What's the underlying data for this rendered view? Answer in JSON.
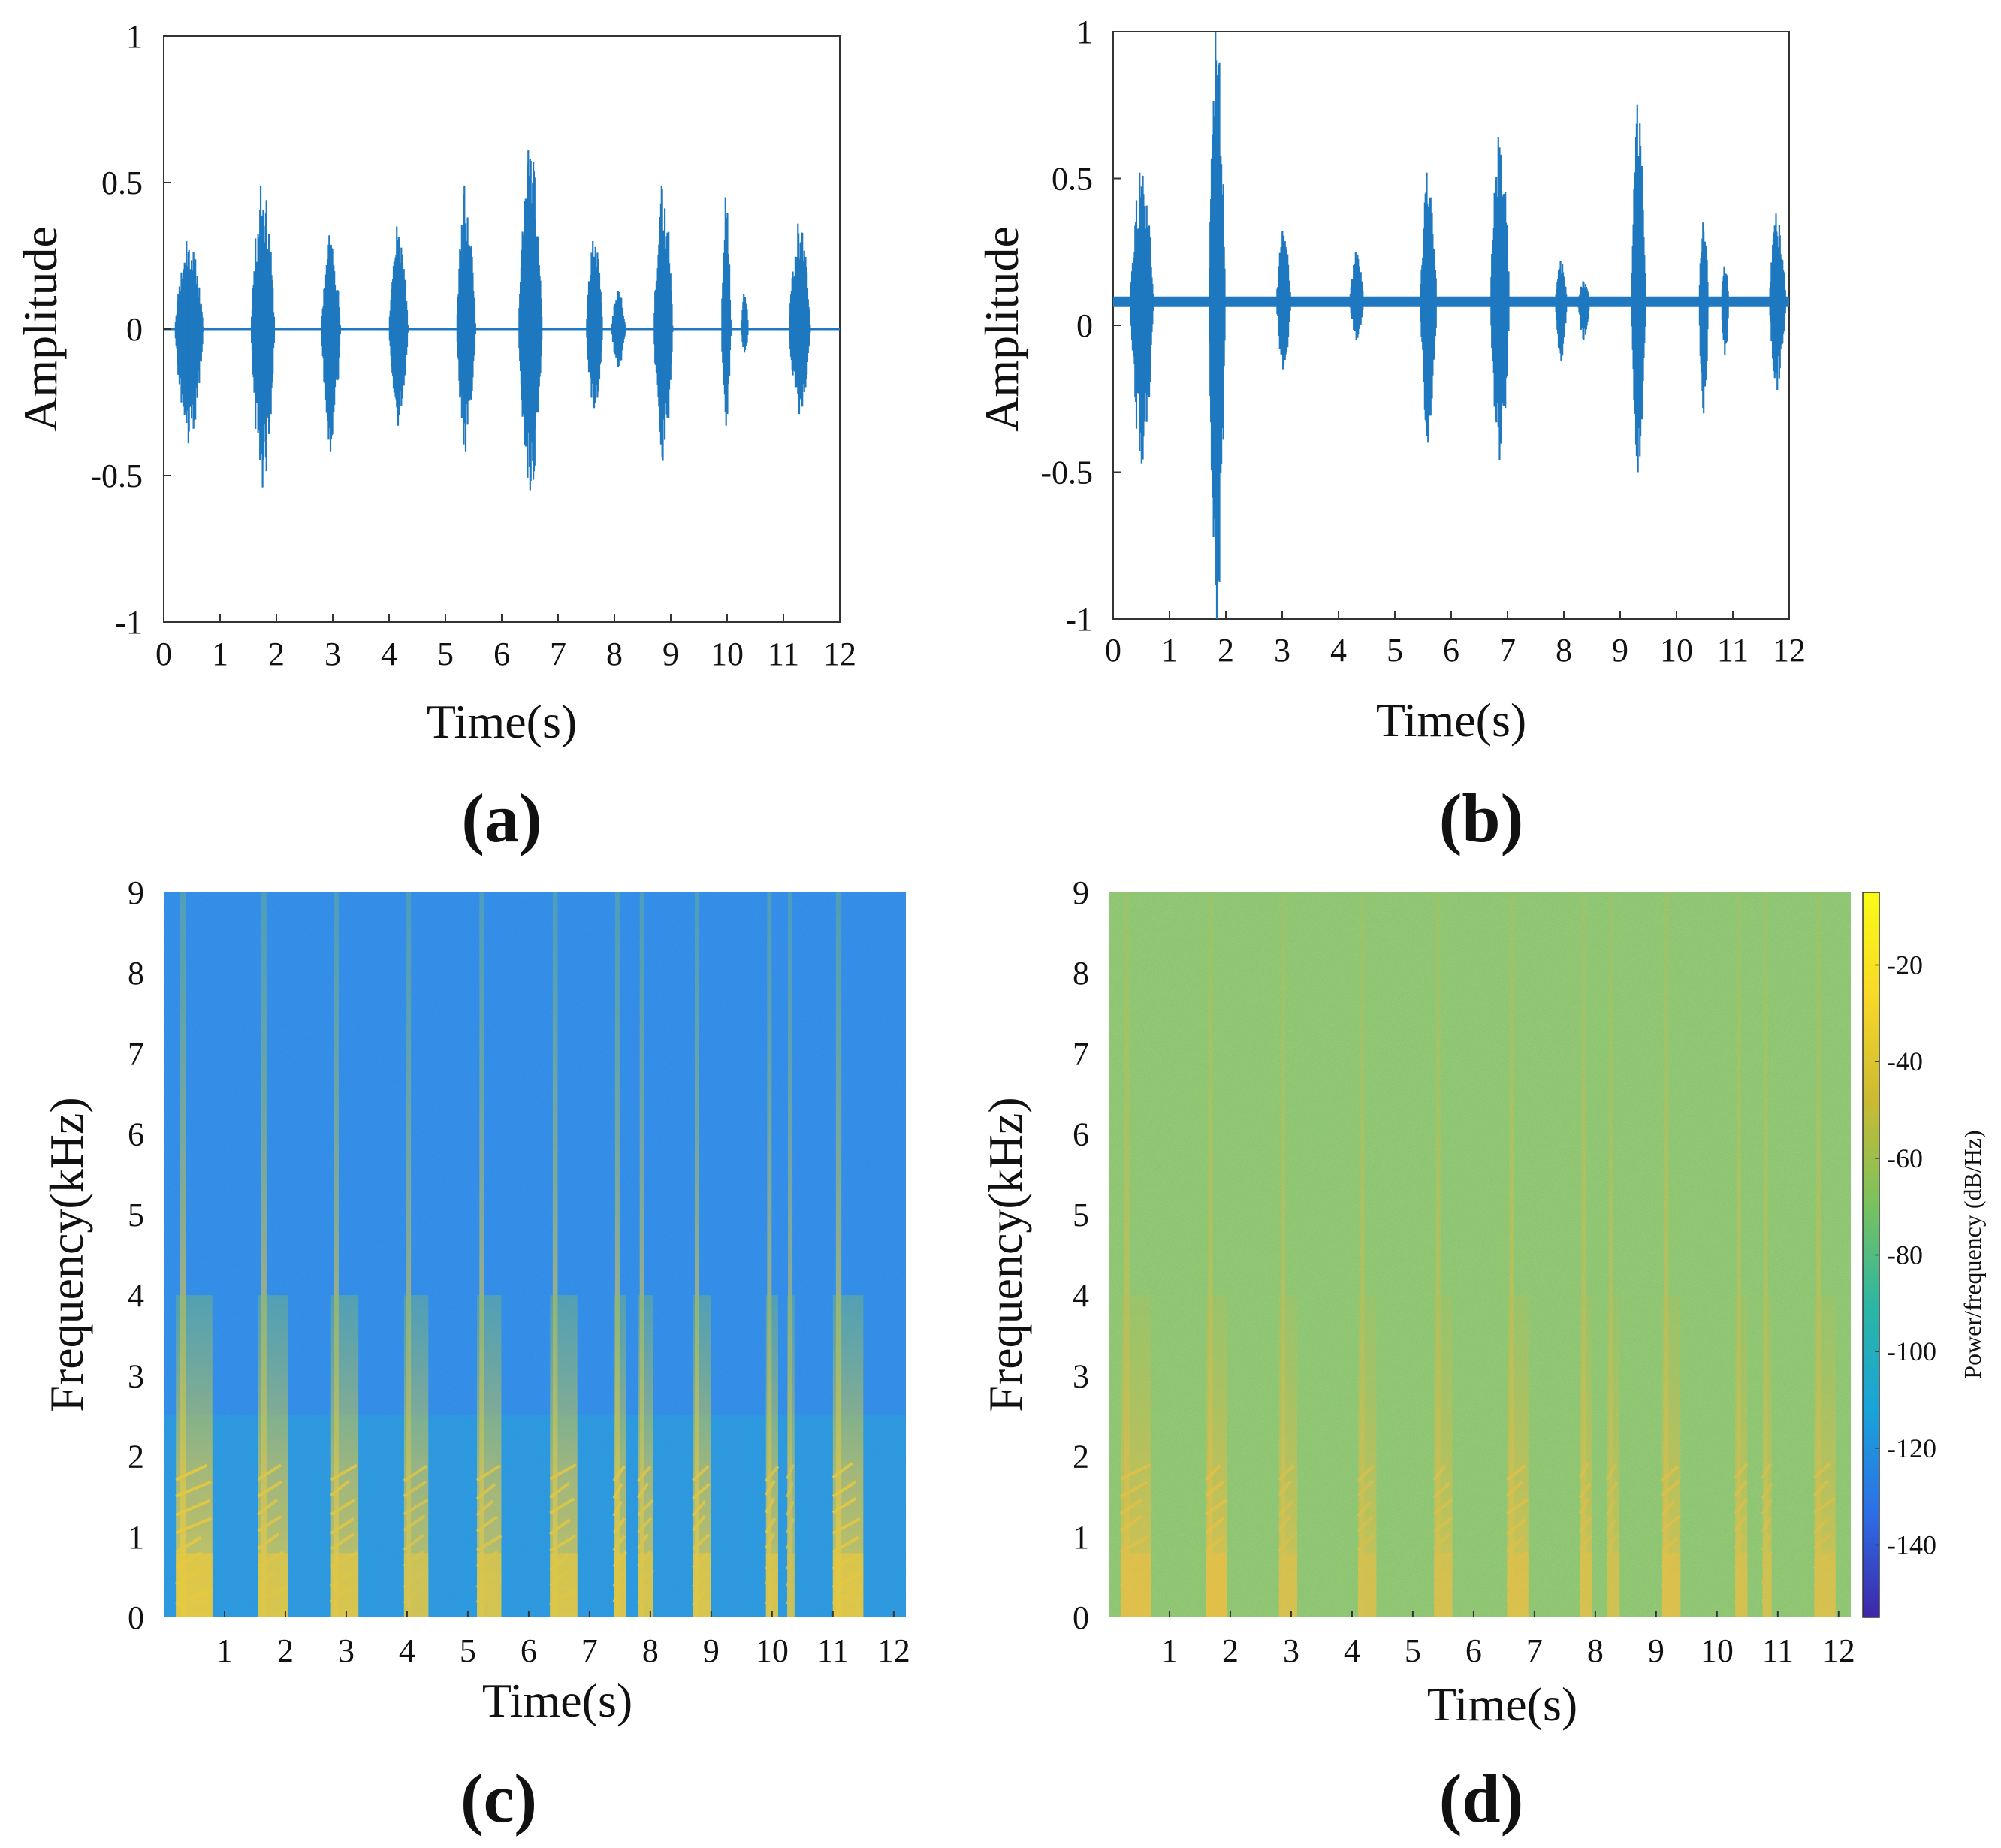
{
  "chart_data": [
    {
      "id": "a",
      "panel_label": "(a)",
      "type": "line",
      "xlabel": "Time(s)",
      "ylabel": "Amplitude",
      "xlim": [
        0,
        12
      ],
      "ylim": [
        -1,
        1
      ],
      "xticks": [
        "0",
        "1",
        "2",
        "3",
        "4",
        "5",
        "6",
        "7",
        "8",
        "9",
        "10",
        "11",
        "12"
      ],
      "yticks": [
        "1",
        "0.5",
        "0",
        "-0.5",
        "-1"
      ],
      "color": "#1f78c0",
      "baseline": 0,
      "bursts": [
        {
          "t": 0.2,
          "dur": 0.6,
          "max": 0.3,
          "min": -0.39
        },
        {
          "t": 1.55,
          "dur": 0.5,
          "max": 0.49,
          "min": -0.54
        },
        {
          "t": 2.8,
          "dur": 0.4,
          "max": 0.32,
          "min": -0.42
        },
        {
          "t": 4.0,
          "dur": 0.4,
          "max": 0.35,
          "min": -0.33
        },
        {
          "t": 5.2,
          "dur": 0.4,
          "max": 0.49,
          "min": -0.42
        },
        {
          "t": 6.3,
          "dur": 0.5,
          "max": 0.61,
          "min": -0.55
        },
        {
          "t": 7.5,
          "dur": 0.35,
          "max": 0.3,
          "min": -0.27
        },
        {
          "t": 7.95,
          "dur": 0.3,
          "max": 0.13,
          "min": -0.13
        },
        {
          "t": 8.7,
          "dur": 0.4,
          "max": 0.49,
          "min": -0.45
        },
        {
          "t": 9.9,
          "dur": 0.2,
          "max": 0.45,
          "min": -0.33
        },
        {
          "t": 10.25,
          "dur": 0.15,
          "max": 0.12,
          "min": -0.08
        },
        {
          "t": 11.1,
          "dur": 0.45,
          "max": 0.36,
          "min": -0.29
        }
      ]
    },
    {
      "id": "b",
      "panel_label": "(b)",
      "type": "line",
      "xlabel": "Time(s)",
      "ylabel": "Amplitude",
      "xlim": [
        0,
        12
      ],
      "ylim": [
        -1,
        1
      ],
      "xticks": [
        "0",
        "1",
        "2",
        "3",
        "4",
        "5",
        "6",
        "7",
        "8",
        "9",
        "10",
        "11",
        "12"
      ],
      "yticks": [
        "1",
        "0.5",
        "0",
        "-0.5",
        "-1"
      ],
      "color": "#1f78c0",
      "baseline": 0.08,
      "bursts": [
        {
          "t": 0.3,
          "dur": 0.5,
          "max": 0.52,
          "min": -0.47
        },
        {
          "t": 1.7,
          "dur": 0.35,
          "max": 1.0,
          "min": -1.0
        },
        {
          "t": 2.9,
          "dur": 0.3,
          "max": 0.32,
          "min": -0.15
        },
        {
          "t": 4.2,
          "dur": 0.3,
          "max": 0.25,
          "min": -0.05
        },
        {
          "t": 5.45,
          "dur": 0.35,
          "max": 0.52,
          "min": -0.4
        },
        {
          "t": 6.7,
          "dur": 0.4,
          "max": 0.64,
          "min": -0.46
        },
        {
          "t": 7.85,
          "dur": 0.25,
          "max": 0.22,
          "min": -0.12
        },
        {
          "t": 8.25,
          "dur": 0.25,
          "max": 0.15,
          "min": -0.05
        },
        {
          "t": 9.2,
          "dur": 0.3,
          "max": 0.75,
          "min": -0.5
        },
        {
          "t": 10.4,
          "dur": 0.2,
          "max": 0.35,
          "min": -0.3
        },
        {
          "t": 10.8,
          "dur": 0.15,
          "max": 0.2,
          "min": -0.1
        },
        {
          "t": 11.65,
          "dur": 0.35,
          "max": 0.38,
          "min": -0.22
        }
      ]
    },
    {
      "id": "c",
      "panel_label": "(c)",
      "type": "heatmap",
      "xlabel": "Time(s)",
      "ylabel": "Frequency(kHz)",
      "xlim": [
        0,
        12.2
      ],
      "ylim": [
        0,
        9
      ],
      "xticks": [
        "1",
        "2",
        "3",
        "4",
        "5",
        "6",
        "7",
        "8",
        "9",
        "10",
        "11",
        "12"
      ],
      "yticks": [
        "9",
        "8",
        "7",
        "6",
        "5",
        "4",
        "3",
        "2",
        "1",
        "0"
      ],
      "background_color": "#2c8ae6",
      "low_band_color": "#26a6d3",
      "hot_color": "#f1cb38",
      "bursts": [
        {
          "t": 0.2,
          "dur": 0.6,
          "intensity": 0.9
        },
        {
          "t": 1.55,
          "dur": 0.5,
          "intensity": 0.8
        },
        {
          "t": 2.75,
          "dur": 0.45,
          "intensity": 0.8
        },
        {
          "t": 3.95,
          "dur": 0.4,
          "intensity": 0.7
        },
        {
          "t": 5.15,
          "dur": 0.4,
          "intensity": 0.75
        },
        {
          "t": 6.35,
          "dur": 0.45,
          "intensity": 0.8
        },
        {
          "t": 7.4,
          "dur": 0.2,
          "intensity": 0.8
        },
        {
          "t": 7.8,
          "dur": 0.25,
          "intensity": 0.75
        },
        {
          "t": 8.7,
          "dur": 0.3,
          "intensity": 0.8
        },
        {
          "t": 9.9,
          "dur": 0.2,
          "intensity": 0.75
        },
        {
          "t": 10.25,
          "dur": 0.12,
          "intensity": 0.6
        },
        {
          "t": 11.0,
          "dur": 0.5,
          "intensity": 0.85
        }
      ]
    },
    {
      "id": "d",
      "panel_label": "(d)",
      "type": "heatmap",
      "xlabel": "Time(s)",
      "ylabel": "Frequency(kHz)",
      "xlim": [
        0,
        12.2
      ],
      "ylim": [
        0,
        9
      ],
      "xticks": [
        "1",
        "2",
        "3",
        "4",
        "5",
        "6",
        "7",
        "8",
        "9",
        "10",
        "11",
        "12"
      ],
      "yticks": [
        "9",
        "8",
        "7",
        "6",
        "5",
        "4",
        "3",
        "2",
        "1",
        "0"
      ],
      "background_color": "#7fc06d",
      "hot_color": "#e9bf45",
      "bursts": [
        {
          "t": 0.2,
          "dur": 0.5,
          "intensity": 0.8
        },
        {
          "t": 1.6,
          "dur": 0.35,
          "intensity": 0.85
        },
        {
          "t": 2.8,
          "dur": 0.3,
          "intensity": 0.6
        },
        {
          "t": 4.1,
          "dur": 0.3,
          "intensity": 0.5
        },
        {
          "t": 5.35,
          "dur": 0.3,
          "intensity": 0.55
        },
        {
          "t": 6.55,
          "dur": 0.35,
          "intensity": 0.7
        },
        {
          "t": 7.75,
          "dur": 0.2,
          "intensity": 0.6
        },
        {
          "t": 8.2,
          "dur": 0.2,
          "intensity": 0.45
        },
        {
          "t": 9.1,
          "dur": 0.3,
          "intensity": 0.7
        },
        {
          "t": 10.3,
          "dur": 0.2,
          "intensity": 0.55
        },
        {
          "t": 10.75,
          "dur": 0.15,
          "intensity": 0.45
        },
        {
          "t": 11.6,
          "dur": 0.35,
          "intensity": 0.6
        }
      ],
      "colorbar": {
        "label": "Power/frequency (dB/Hz)",
        "range": [
          -155,
          -5
        ],
        "ticks": [
          "-20",
          "-40",
          "-60",
          "-80",
          "-100",
          "-120",
          "-140"
        ],
        "colors": [
          "#3e26a8",
          "#2d6ee7",
          "#1aa3d9",
          "#2bb6a4",
          "#7ac25d",
          "#cbba32",
          "#f9d827",
          "#f9fb15"
        ]
      }
    }
  ]
}
